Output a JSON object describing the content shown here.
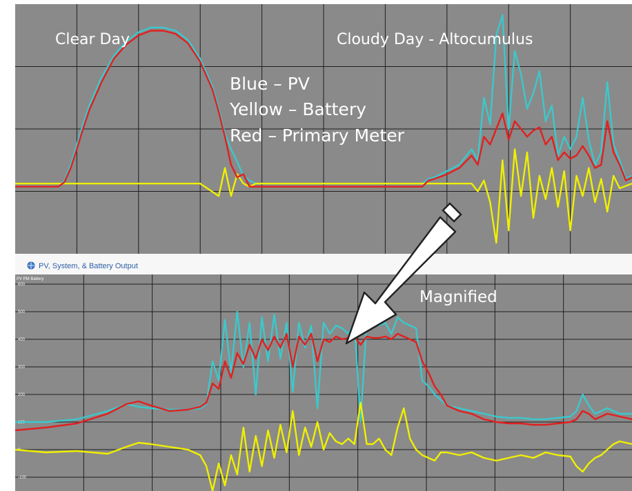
{
  "colors": {
    "panel_bg": "#8a8a8a",
    "grid": "#1f1f1f",
    "pv": "#3cc8cc",
    "battery": "#f0f000",
    "primary_meter": "#e02020",
    "panel_header_bg": "#f7f7f7",
    "header_text": "#2f5fa8"
  },
  "annotations": {
    "clear_day": "Clear Day",
    "cloudy_day": "Cloudy Day - Altocumulus",
    "legend_pv": "Blue – PV",
    "legend_battery": "Yellow – Battery",
    "legend_meter": "Red – Primary Meter",
    "magnified": "Magnified"
  },
  "lower_panel": {
    "header_icon": "globe-icon",
    "header_title": "PV, System, & Battery Output",
    "series_caption": "PV PM Battery",
    "arrow_icon": "arrow-down-left-icon"
  },
  "chart_data": [
    {
      "type": "line",
      "panel": "upper",
      "ylim": [
        -45,
        115
      ],
      "xlim": [
        0,
        100
      ],
      "series": [
        {
          "name": "Blue – PV",
          "color": "#3cc8cc",
          "x": [
            0,
            7,
            8,
            9,
            10,
            11,
            12,
            14,
            16,
            18,
            20,
            22,
            24,
            26,
            28,
            30,
            32,
            33,
            34,
            35,
            36,
            37,
            38,
            39,
            40,
            44,
            48,
            52,
            56,
            60,
            66,
            67,
            68,
            70,
            72,
            74,
            75,
            76,
            77,
            78,
            79,
            80,
            81,
            82,
            83,
            84,
            85,
            86,
            87,
            88,
            89,
            90,
            91,
            92,
            93,
            94,
            95,
            96,
            97,
            98,
            99,
            100
          ],
          "y": [
            -2,
            -2,
            2,
            12,
            25,
            38,
            50,
            68,
            82,
            91,
            97,
            100,
            100,
            98,
            92,
            80,
            62,
            48,
            32,
            22,
            14,
            5,
            2,
            0,
            0,
            0,
            0,
            0,
            0,
            0,
            0,
            3,
            4,
            8,
            12,
            22,
            15,
            55,
            38,
            95,
            108,
            35,
            85,
            70,
            48,
            58,
            72,
            40,
            50,
            18,
            30,
            22,
            30,
            55,
            28,
            12,
            20,
            65,
            25,
            15,
            3,
            5
          ]
        },
        {
          "name": "Yellow – Battery",
          "color": "#f0f000",
          "x": [
            0,
            10,
            20,
            30,
            33,
            34,
            35,
            36,
            37,
            38,
            39,
            40,
            44,
            50,
            60,
            66,
            70,
            74,
            75,
            76,
            77,
            78,
            79,
            80,
            81,
            82,
            83,
            84,
            85,
            86,
            87,
            88,
            89,
            90,
            91,
            92,
            93,
            94,
            95,
            96,
            97,
            98,
            100
          ],
          "y": [
            0,
            0,
            0,
            0,
            -8,
            10,
            -8,
            6,
            0,
            -2,
            0,
            0,
            0,
            0,
            0,
            0,
            0,
            0,
            -5,
            2,
            -12,
            -38,
            15,
            -30,
            22,
            -8,
            20,
            -22,
            5,
            -10,
            10,
            -15,
            8,
            -30,
            5,
            -8,
            10,
            -12,
            3,
            -18,
            5,
            -3,
            0
          ]
        },
        {
          "name": "Red – Primary Meter",
          "color": "#e02020",
          "x": [
            0,
            7,
            8,
            9,
            10,
            11,
            12,
            14,
            16,
            18,
            20,
            22,
            24,
            26,
            28,
            30,
            32,
            33,
            34,
            35,
            36,
            37,
            38,
            39,
            40,
            44,
            48,
            52,
            56,
            60,
            66,
            67,
            68,
            70,
            72,
            74,
            75,
            76,
            77,
            78,
            79,
            80,
            81,
            82,
            83,
            84,
            85,
            86,
            87,
            88,
            89,
            90,
            91,
            92,
            93,
            94,
            95,
            96,
            97,
            98,
            99,
            100
          ],
          "y": [
            -2,
            -2,
            1,
            10,
            22,
            35,
            47,
            65,
            80,
            89,
            95,
            98,
            98,
            96,
            90,
            78,
            60,
            46,
            30,
            12,
            4,
            6,
            -2,
            -2,
            -2,
            -2,
            -2,
            -2,
            -2,
            -2,
            -2,
            2,
            3,
            6,
            10,
            18,
            12,
            30,
            25,
            35,
            45,
            28,
            40,
            35,
            30,
            34,
            36,
            25,
            30,
            15,
            20,
            16,
            18,
            24,
            18,
            10,
            12,
            40,
            20,
            12,
            2,
            4
          ]
        }
      ]
    },
    {
      "type": "line",
      "panel": "lower",
      "y_ticks": [
        -100,
        0,
        100,
        200,
        300,
        400,
        500,
        600
      ],
      "ylim": [
        -150,
        600
      ],
      "xlim": [
        0,
        100
      ],
      "series": [
        {
          "name": "PV",
          "color": "#3cc8cc",
          "x": [
            0,
            5,
            10,
            15,
            18,
            20,
            22,
            25,
            28,
            30,
            31,
            32,
            33,
            34,
            35,
            36,
            37,
            38,
            39,
            40,
            41,
            42,
            43,
            44,
            45,
            46,
            47,
            48,
            49,
            50,
            51,
            52,
            53,
            54,
            55,
            56,
            57,
            58,
            59,
            60,
            61,
            62,
            63,
            64,
            65,
            66,
            67,
            68,
            69,
            70,
            72,
            74,
            76,
            78,
            80,
            82,
            84,
            86,
            88,
            90,
            91,
            92,
            93,
            94,
            95,
            96,
            97,
            98,
            100
          ],
          "y": [
            100,
            100,
            110,
            140,
            165,
            155,
            150,
            145,
            145,
            150,
            165,
            320,
            250,
            470,
            280,
            500,
            300,
            460,
            200,
            480,
            320,
            490,
            330,
            460,
            210,
            460,
            370,
            450,
            150,
            460,
            420,
            450,
            440,
            420,
            460,
            100,
            470,
            460,
            450,
            460,
            420,
            480,
            460,
            450,
            440,
            250,
            230,
            200,
            180,
            160,
            150,
            140,
            130,
            120,
            115,
            115,
            110,
            110,
            115,
            120,
            140,
            200,
            160,
            130,
            140,
            150,
            140,
            130,
            130
          ]
        },
        {
          "name": "Battery",
          "color": "#f0f000",
          "x": [
            0,
            5,
            10,
            15,
            18,
            20,
            22,
            25,
            28,
            30,
            31,
            32,
            33,
            34,
            35,
            36,
            37,
            38,
            39,
            40,
            41,
            42,
            43,
            44,
            45,
            46,
            47,
            48,
            49,
            50,
            51,
            52,
            53,
            54,
            55,
            56,
            57,
            58,
            59,
            60,
            61,
            62,
            63,
            64,
            65,
            66,
            67,
            68,
            69,
            70,
            72,
            74,
            76,
            78,
            80,
            82,
            84,
            86,
            88,
            90,
            91,
            92,
            93,
            94,
            95,
            96,
            97,
            98,
            100
          ],
          "y": [
            0,
            -10,
            -5,
            -15,
            10,
            25,
            20,
            10,
            0,
            -20,
            -60,
            -150,
            -50,
            -130,
            -20,
            -90,
            80,
            -80,
            50,
            -60,
            70,
            -30,
            90,
            -10,
            140,
            -20,
            80,
            10,
            100,
            0,
            60,
            30,
            20,
            40,
            20,
            170,
            20,
            20,
            40,
            0,
            -20,
            80,
            150,
            40,
            0,
            -20,
            -30,
            -40,
            -10,
            -10,
            -20,
            -10,
            -30,
            -40,
            -30,
            -20,
            -30,
            -10,
            -20,
            -25,
            -60,
            -80,
            -50,
            -30,
            -20,
            0,
            20,
            30,
            20
          ]
        },
        {
          "name": "Primary Meter",
          "color": "#e02020",
          "x": [
            0,
            5,
            10,
            15,
            18,
            20,
            22,
            25,
            28,
            30,
            31,
            32,
            33,
            34,
            35,
            36,
            37,
            38,
            39,
            40,
            41,
            42,
            43,
            44,
            45,
            46,
            47,
            48,
            49,
            50,
            51,
            52,
            53,
            54,
            55,
            56,
            57,
            58,
            59,
            60,
            61,
            62,
            63,
            64,
            65,
            66,
            67,
            68,
            69,
            70,
            72,
            74,
            76,
            78,
            80,
            82,
            84,
            86,
            88,
            90,
            91,
            92,
            93,
            94,
            95,
            96,
            97,
            98,
            100
          ],
          "y": [
            70,
            80,
            95,
            130,
            165,
            175,
            160,
            140,
            145,
            155,
            170,
            240,
            220,
            320,
            260,
            350,
            310,
            380,
            330,
            400,
            360,
            410,
            370,
            420,
            300,
            410,
            380,
            420,
            320,
            400,
            390,
            410,
            400,
            405,
            410,
            380,
            410,
            405,
            405,
            410,
            400,
            420,
            410,
            400,
            390,
            320,
            280,
            230,
            200,
            160,
            140,
            130,
            110,
            100,
            95,
            95,
            90,
            90,
            95,
            100,
            110,
            140,
            130,
            110,
            120,
            130,
            125,
            120,
            110
          ]
        }
      ]
    }
  ]
}
